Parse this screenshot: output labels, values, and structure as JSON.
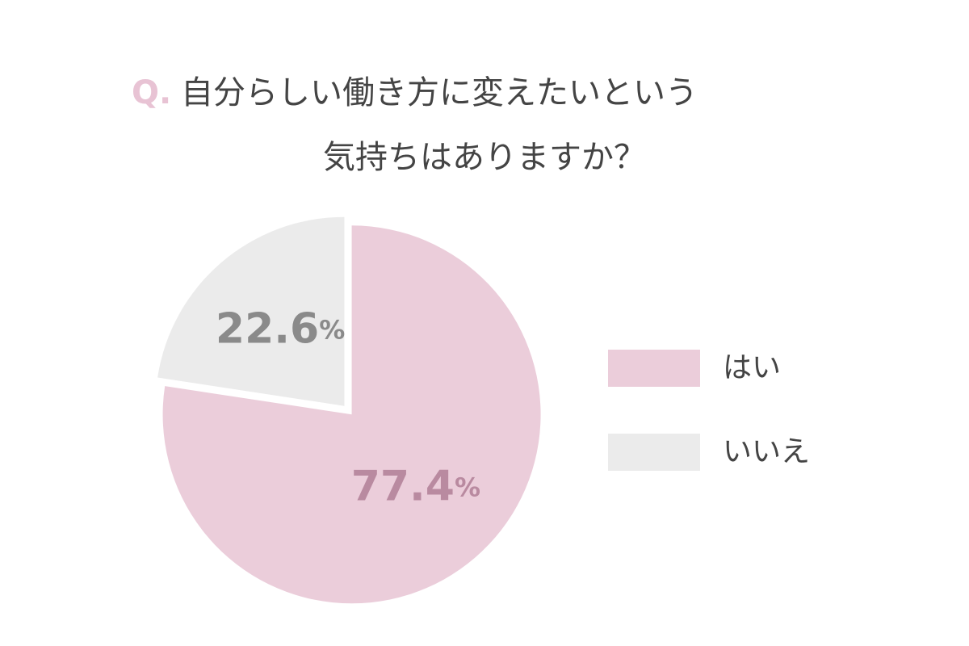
{
  "chart_data": {
    "type": "pie",
    "question_label": "Q.",
    "title": [
      "自分らしい働き方に変えたいという",
      "気持ちはありますか？"
    ],
    "categories": [
      "はい",
      "いいえ"
    ],
    "values": [
      77.4,
      22.6
    ],
    "value_labels": [
      "77.4%",
      "22.6%"
    ],
    "colors": [
      "#ebcdda",
      "#ebebeb"
    ],
    "label_colors": [
      "#b98aa0",
      "#8a8a8a"
    ],
    "question_color": "#e8c3d4",
    "legend": "right"
  }
}
